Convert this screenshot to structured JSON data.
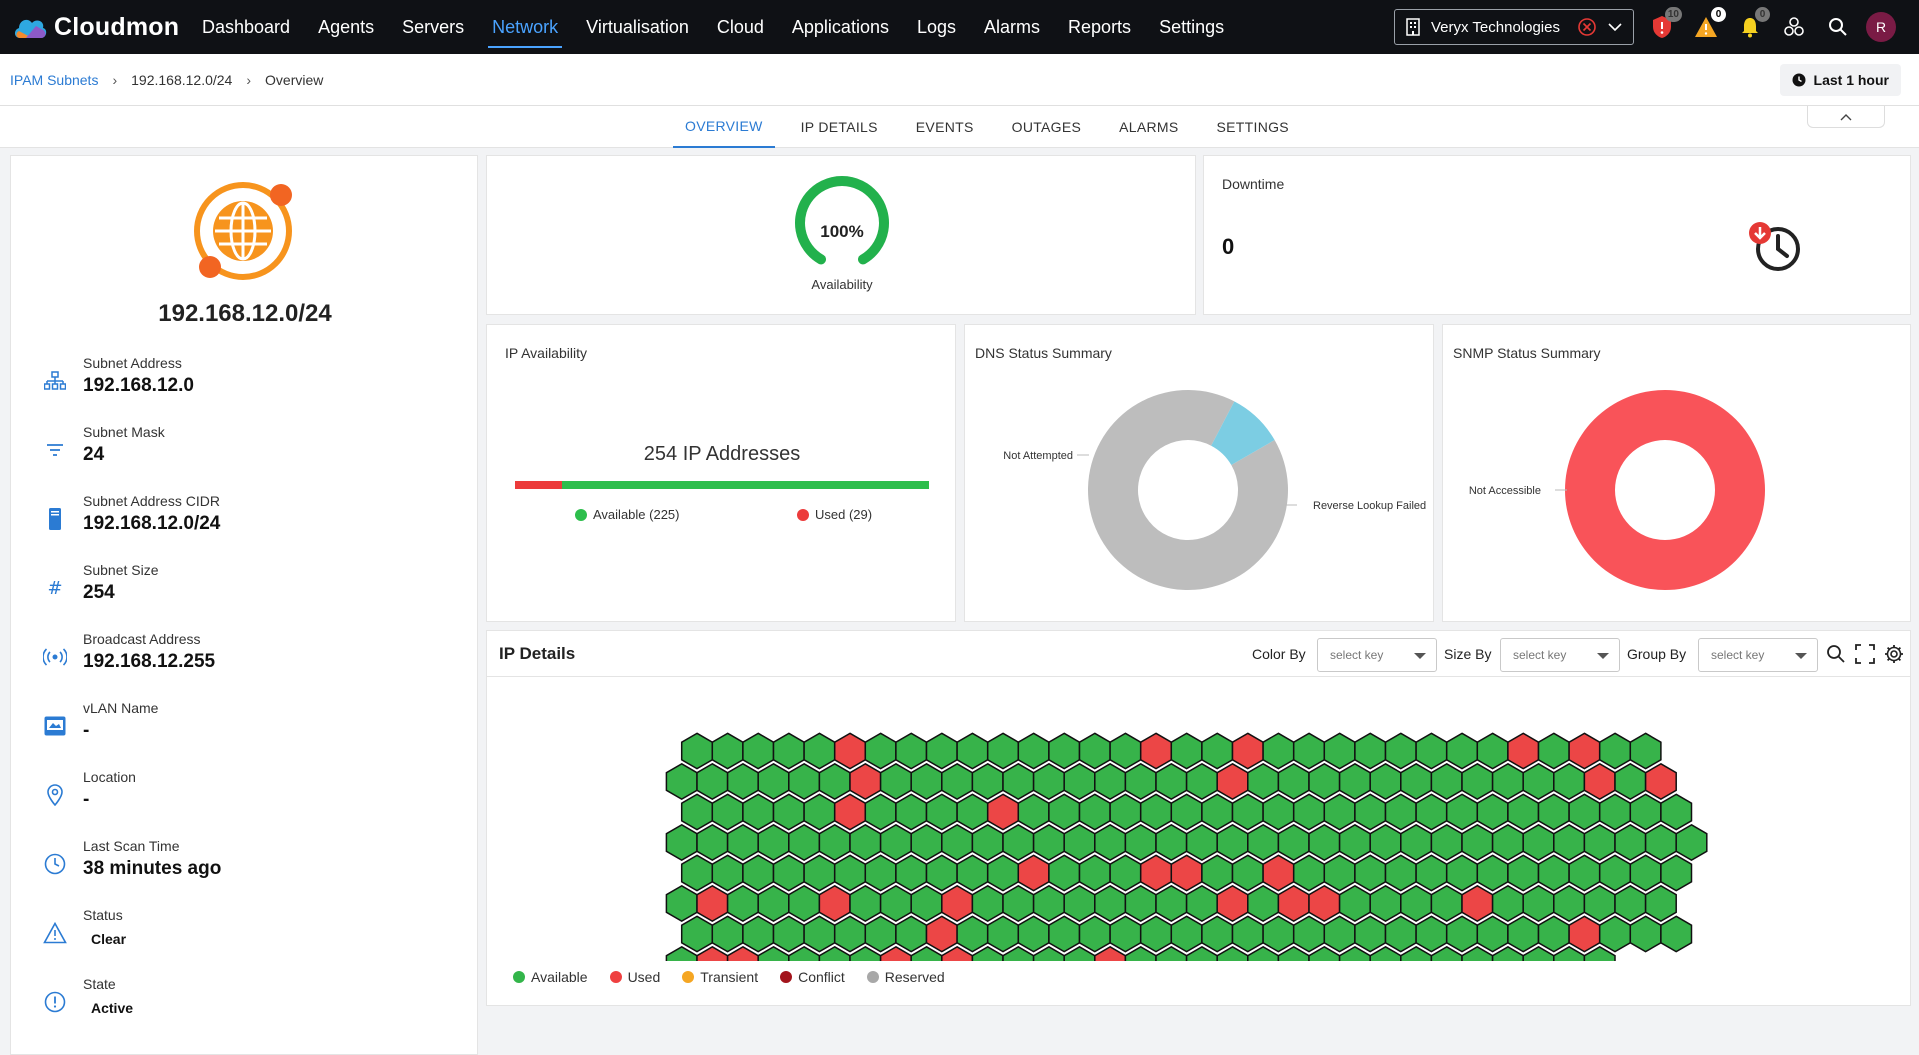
{
  "app": {
    "name": "Cloudmon"
  },
  "nav": {
    "items": [
      {
        "label": "Dashboard"
      },
      {
        "label": "Agents"
      },
      {
        "label": "Servers"
      },
      {
        "label": "Network"
      },
      {
        "label": "Virtualisation"
      },
      {
        "label": "Cloud"
      },
      {
        "label": "Applications"
      },
      {
        "label": "Logs"
      },
      {
        "label": "Alarms"
      },
      {
        "label": "Reports"
      },
      {
        "label": "Settings"
      }
    ],
    "active": "Network"
  },
  "org_selector": {
    "value": "Veryx Technologies"
  },
  "top_icons": {
    "shield_badge": "10",
    "warning_badge": "0",
    "bell_badge": "0",
    "avatar_initial": "R"
  },
  "breadcrumb": {
    "root": "IPAM Subnets",
    "subnet": "192.168.12.0/24",
    "current": "Overview"
  },
  "time_range": {
    "label": "Last 1 hour"
  },
  "tabs": [
    {
      "label": "OVERVIEW"
    },
    {
      "label": "IP DETAILS"
    },
    {
      "label": "EVENTS"
    },
    {
      "label": "OUTAGES"
    },
    {
      "label": "ALARMS"
    },
    {
      "label": "SETTINGS"
    }
  ],
  "subnet": {
    "title": "192.168.12.0/24",
    "details": [
      {
        "label": "Subnet Address",
        "value": "192.168.12.0",
        "icon": "network-icon"
      },
      {
        "label": "Subnet Mask",
        "value": "24",
        "icon": "filter-icon"
      },
      {
        "label": "Subnet Address CIDR",
        "value": "192.168.12.0/24",
        "icon": "server-icon"
      },
      {
        "label": "Subnet Size",
        "value": "254",
        "icon": "hash-icon"
      },
      {
        "label": "Broadcast Address",
        "value": "192.168.12.255",
        "icon": "broadcast-icon"
      },
      {
        "label": "vLAN Name",
        "value": "-",
        "icon": "vlan-icon"
      },
      {
        "label": "Location",
        "value": "-",
        "icon": "location-icon"
      },
      {
        "label": "Last Scan Time",
        "value": "38 minutes ago",
        "icon": "clock-icon"
      },
      {
        "label": "Status",
        "value": "Clear",
        "icon": "warning-icon"
      },
      {
        "label": "State",
        "value": "Active",
        "icon": "info-icon"
      }
    ]
  },
  "availability": {
    "value_label": "100%",
    "value": 100,
    "caption": "Availability",
    "color": "#22b14c"
  },
  "downtime": {
    "title": "Downtime",
    "value": "0"
  },
  "ip_availability": {
    "title": "IP Availability",
    "total_label": "254 IP Addresses",
    "available": 225,
    "used": 29,
    "available_label": "Available (225)",
    "used_label": "Used (29)"
  },
  "dns_status": {
    "title": "DNS Status Summary",
    "segments": [
      {
        "label": "Not Attempted",
        "fraction": 0.91,
        "color": "#bdbdbd"
      },
      {
        "label": "Reverse Lookup Failed",
        "fraction": 0.09,
        "color": "#7ccde3"
      }
    ]
  },
  "snmp_status": {
    "title": "SNMP Status Summary",
    "segments": [
      {
        "label": "Not Accessible",
        "fraction": 1.0,
        "color": "#f95359"
      }
    ]
  },
  "ip_details": {
    "title": "IP Details",
    "color_by": {
      "label": "Color By",
      "placeholder": "select key"
    },
    "size_by": {
      "label": "Size By",
      "placeholder": "select key"
    },
    "group_by": {
      "label": "Group By",
      "placeholder": "select key"
    },
    "legend": [
      {
        "label": "Available",
        "color": "#33b54a"
      },
      {
        "label": "Used",
        "color": "#ef4040"
      },
      {
        "label": "Transient",
        "color": "#f5a623"
      },
      {
        "label": "Conflict",
        "color": "#a3141c"
      },
      {
        "label": "Reserved",
        "color": "#a8a8a8"
      }
    ],
    "hex_colors": {
      "available": "#37b34a",
      "used": "#ec4646"
    },
    "grid_rows": [
      "AAAAAUAAAAAAAAAUAAUAAAAAAAAUAUAA",
      "AAAAAAUAAAAAAAAAAAUAAAAAAAAAAAUAU",
      "AAAAAUAAAAUAAAAAAAAAAAAAAAAAAAAAA",
      "AAAAAAAAAAAAAAAAAAAAAAAAAAAAAAAAAA",
      "AAAAAAAAAAAUAAAUUAAUAAAAAAAAAAAAA",
      "AUAAAUAAAUAAAAAAAAUAUUAAAAUAAAAAA",
      "AAAAAAAAUAAAAAAAAAAAAAAAAAAAAUAAA",
      "AUUAAAAUAUAAAAUAAAAAAAAAAAAAAAA"
    ]
  }
}
